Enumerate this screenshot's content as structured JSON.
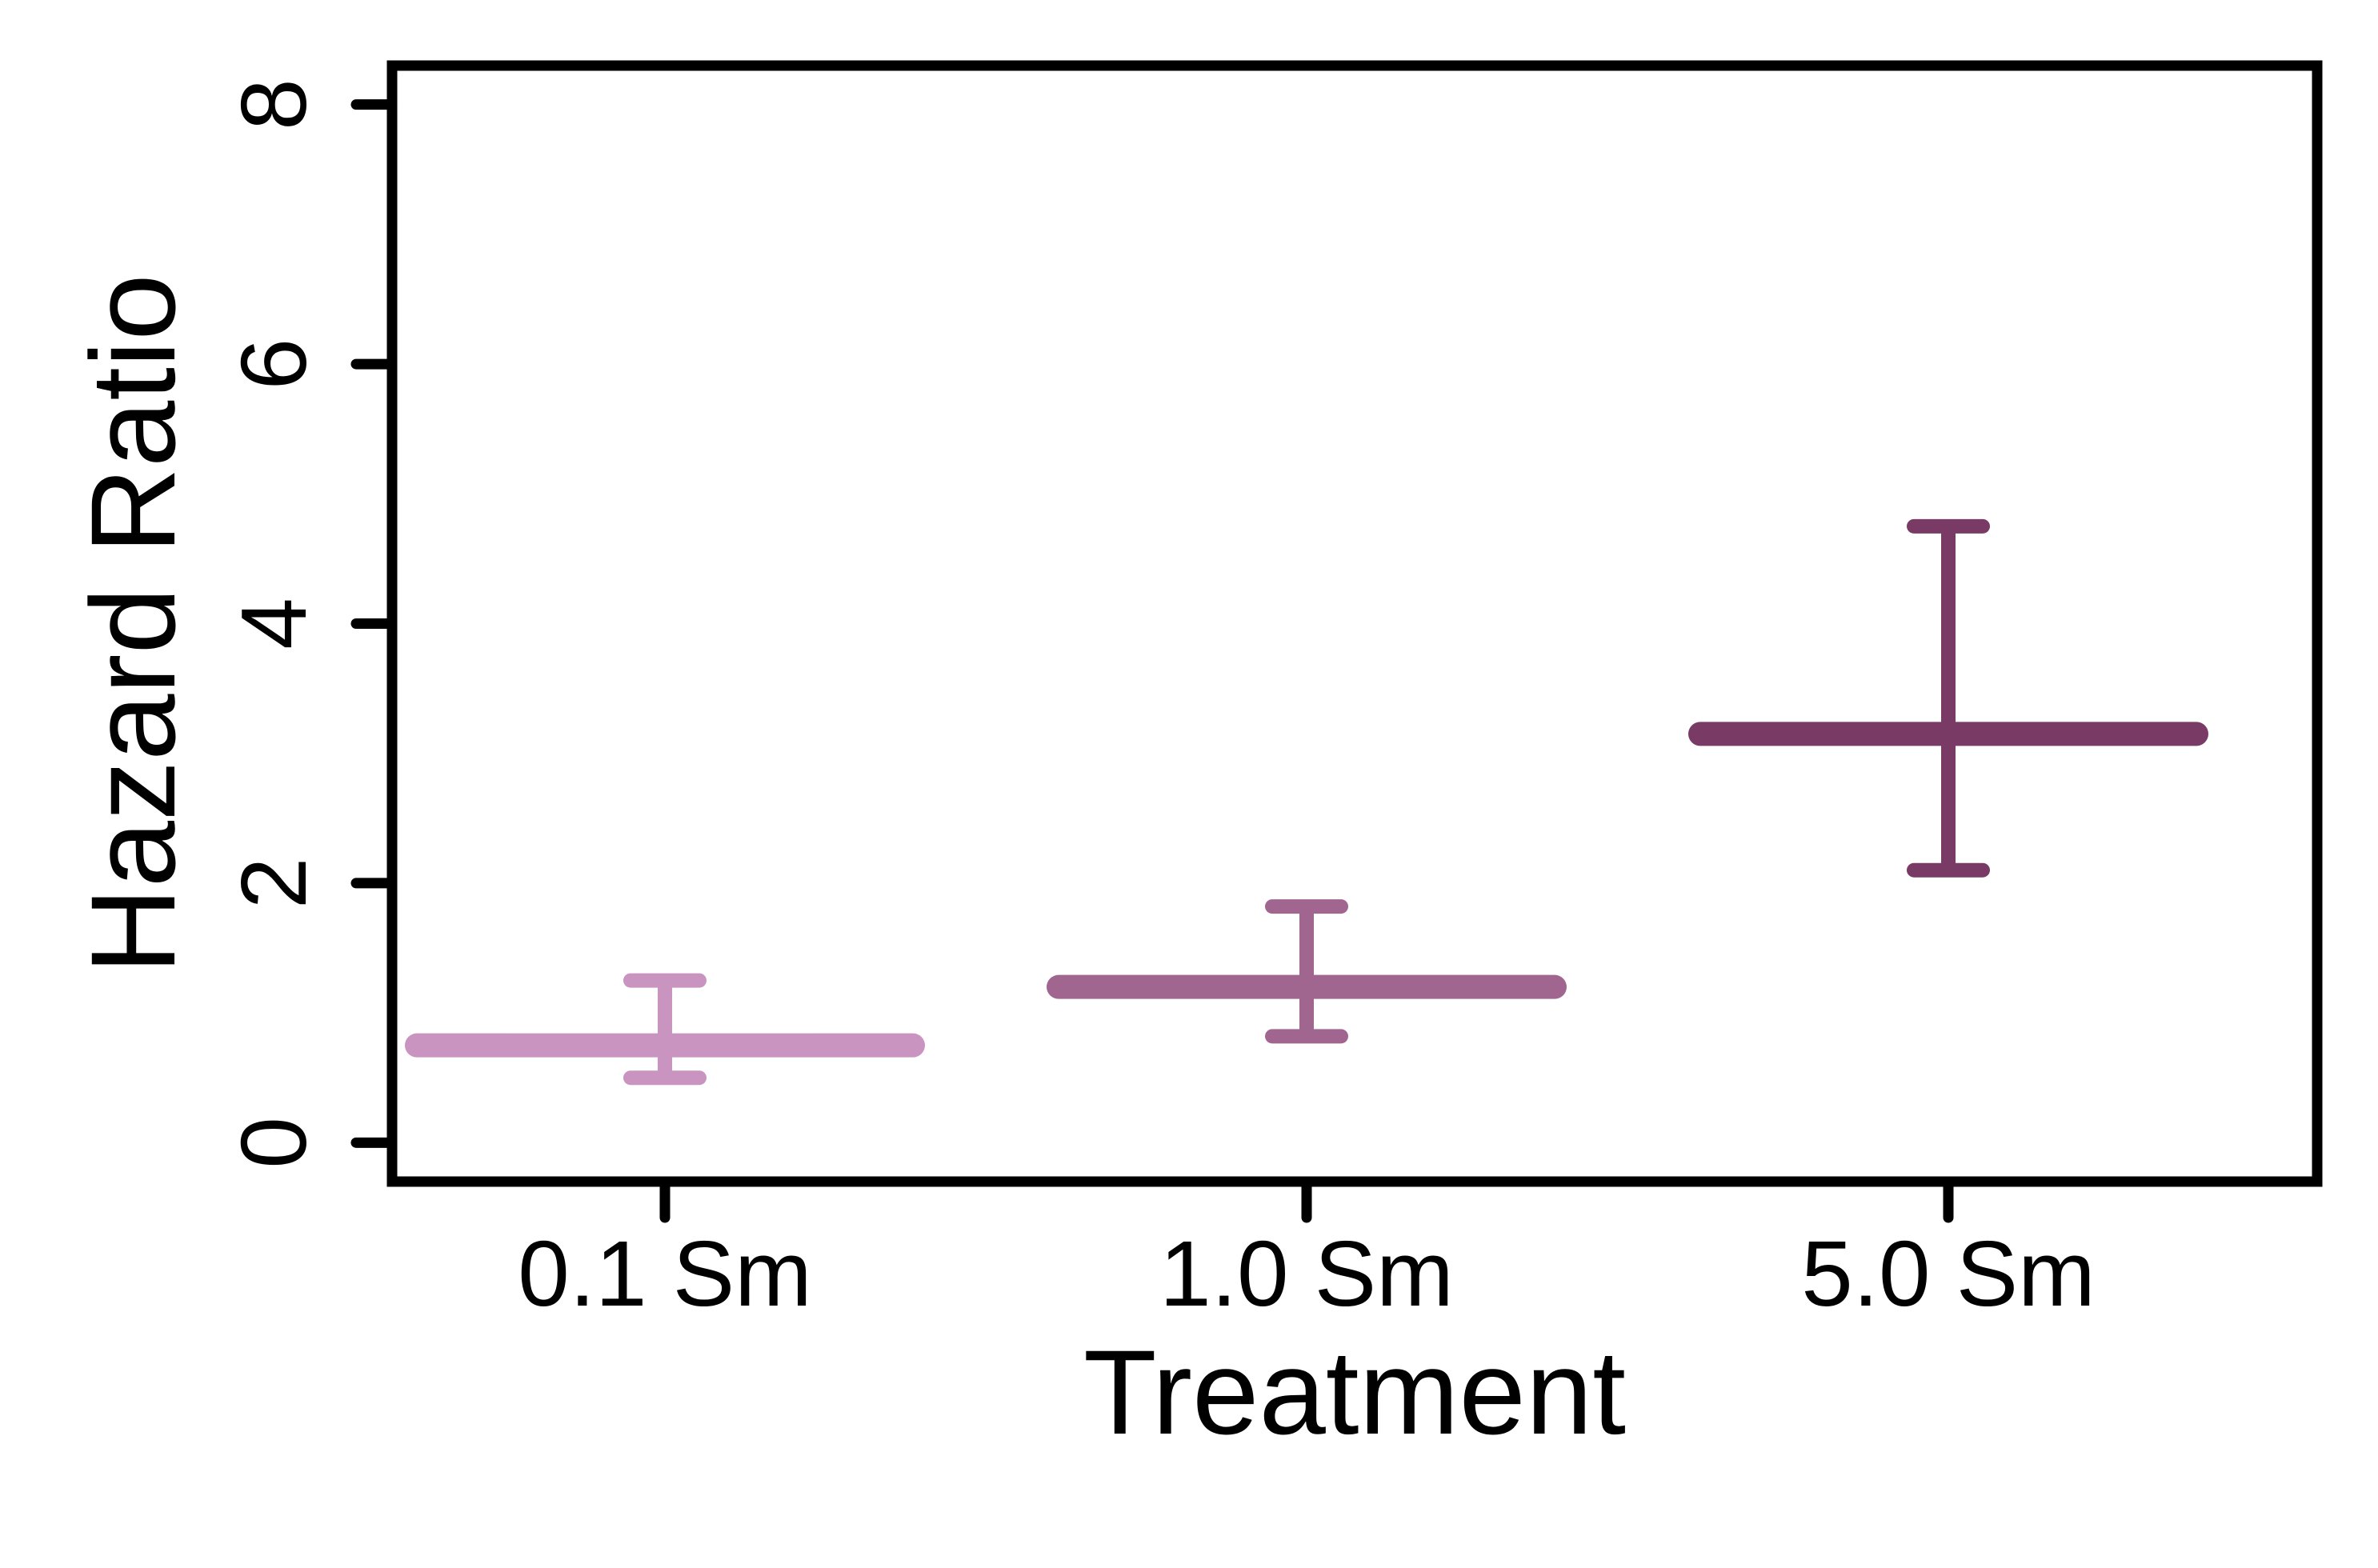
{
  "chart_data": {
    "type": "errorbar",
    "xlabel": "Treatment",
    "ylabel": "Hazard Ratio",
    "ylim": [
      -0.3,
      8.3
    ],
    "yticks": [
      0,
      2,
      4,
      6,
      8
    ],
    "grid": false,
    "legend": "none",
    "categories": [
      "0.1 Sm",
      "1.0 Sm",
      "5.0 Sm"
    ],
    "points": [
      {
        "category": "0.1 Sm",
        "value": 0.75,
        "lower": 0.5,
        "upper": 1.25,
        "color": "#c994c0"
      },
      {
        "category": "1.0 Sm",
        "value": 1.2,
        "lower": 0.82,
        "upper": 1.82,
        "color": "#a1668f"
      },
      {
        "category": "5.0 Sm",
        "value": 3.15,
        "lower": 2.1,
        "upper": 4.75,
        "color": "#793b66"
      }
    ]
  }
}
